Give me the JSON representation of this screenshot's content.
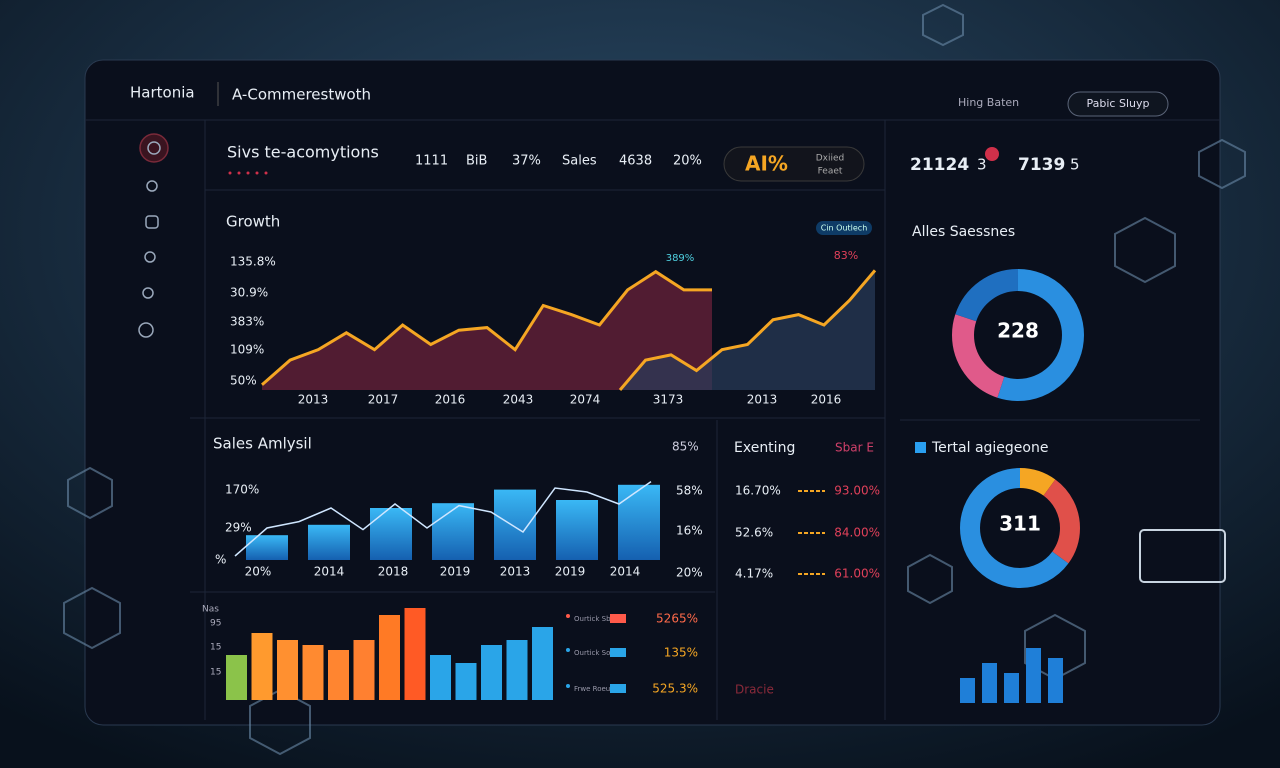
{
  "header": {
    "brand": "Hartonia",
    "title": "A-Commerestwoth",
    "menu": "Hing Baten",
    "button": "Pabic Sluyp"
  },
  "kpi": {
    "title": "Sivs te-acomytions",
    "items": [
      "1111",
      "BiB",
      "37%",
      "Sales",
      "4638",
      "20%"
    ],
    "badge": "AI%",
    "badge_sub": [
      "Dxiied",
      "Feaet"
    ]
  },
  "right_kpi": [
    "21124",
    "3",
    "7139",
    "5"
  ],
  "growth": {
    "title": "Growth",
    "tag": "Cin Outlech",
    "y_labels": [
      "135.8%",
      "30.9%",
      "383%",
      "109%",
      "50%"
    ],
    "x_labels": [
      "2013",
      "2017",
      "2016",
      "2043",
      "2074",
      "3173",
      "2013",
      "2016"
    ],
    "annotations": [
      "389%",
      "83%"
    ],
    "series": [
      {
        "color": "#f5a623",
        "values": [
          4,
          23,
          31,
          44,
          31,
          50,
          35,
          46,
          48,
          31,
          65,
          58,
          50,
          77,
          91,
          77,
          77
        ]
      },
      {
        "color": "#f5a623",
        "values": [
          0,
          23,
          27,
          15,
          31,
          35,
          54,
          58,
          50,
          69,
          92
        ]
      }
    ]
  },
  "sales": {
    "title": "Sales Amlysil",
    "corner": "85%",
    "y_left": [
      "170%",
      "29%",
      "%"
    ],
    "y_right": [
      "58%",
      "16%",
      "20%"
    ],
    "x_labels": [
      "20%",
      "2014",
      "2018",
      "2019",
      "2013",
      "2019",
      "2014"
    ],
    "bars": [
      31,
      44,
      65,
      71,
      88,
      75,
      94
    ],
    "line": [
      5,
      40,
      48,
      65,
      38,
      70,
      40,
      68,
      60,
      35,
      90,
      85,
      70,
      98
    ]
  },
  "bottom": {
    "label": "Nas",
    "y_labels": [
      "95",
      "15",
      "15"
    ],
    "bars": [
      45,
      67,
      60,
      55,
      50,
      60,
      85,
      92,
      45,
      37,
      55,
      60,
      73
    ],
    "colors": [
      "#8bc34a",
      "#ff9a2e",
      "#ff9030",
      "#ff8a30",
      "#ff8530",
      "#ff8030",
      "#ff7a25",
      "#ff5a25",
      "#2aa5e8",
      "#2aa5e8",
      "#2aa5e8",
      "#2aa5e8",
      "#2aa5e8"
    ],
    "legend": [
      {
        "name": "Ourtick Sbenls",
        "value": "5265%",
        "color": "#ff5a4a"
      },
      {
        "name": "Ourtick Soolsy",
        "value": "135%",
        "color": "#2aa5e8"
      },
      {
        "name": "Frwe Roeue",
        "value": "525.3%",
        "color": "#2aa5e8"
      }
    ]
  },
  "expending": {
    "title": "Exenting",
    "tag": "Sbar E",
    "rows": [
      [
        "16.70%",
        "93.00%"
      ],
      [
        "52.6%",
        "84.00%"
      ],
      [
        "4.17%",
        "61.00%"
      ]
    ],
    "footer": "Dracie"
  },
  "donut1": {
    "title": "Alles Saessnes",
    "center": "228",
    "segments": [
      {
        "value": 55,
        "color": "#2a8fe0"
      },
      {
        "value": 25,
        "color": "#e05a8a"
      },
      {
        "value": 20,
        "color": "#1f6fc0"
      }
    ]
  },
  "donut2": {
    "title": "Tertal agiegeone",
    "center": "311",
    "segments": [
      {
        "value": 10,
        "color": "#f5a623"
      },
      {
        "value": 25,
        "color": "#e0504a"
      },
      {
        "value": 65,
        "color": "#2a8fe0"
      }
    ]
  },
  "mini_bars": [
    25,
    40,
    30,
    55,
    45
  ]
}
